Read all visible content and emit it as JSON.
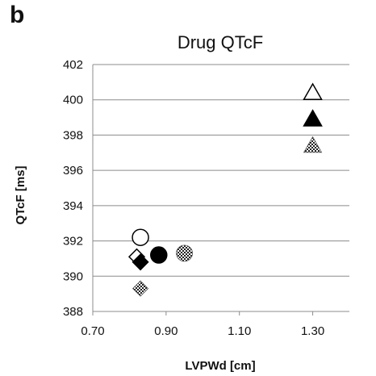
{
  "panel_letter": "b",
  "chart_data": {
    "type": "scatter",
    "title": "Drug QTcF",
    "xlabel": "LVPWd [cm]",
    "ylabel": "QTcF [ms]",
    "xlim": [
      0.7,
      1.4
    ],
    "ylim": [
      388,
      402
    ],
    "xticks": [
      "0.70",
      "0.90",
      "1.10",
      "1.30"
    ],
    "yticks": [
      "388",
      "390",
      "392",
      "394",
      "396",
      "398",
      "400",
      "402"
    ],
    "grid": "horizontal",
    "legend": "none",
    "points": [
      {
        "x": 0.83,
        "y": 392.2,
        "marker": "circle",
        "fill": "open"
      },
      {
        "x": 0.88,
        "y": 391.2,
        "marker": "circle",
        "fill": "solid"
      },
      {
        "x": 0.95,
        "y": 391.3,
        "marker": "circle",
        "fill": "hatched"
      },
      {
        "x": 0.82,
        "y": 391.1,
        "marker": "diamond",
        "fill": "open"
      },
      {
        "x": 0.83,
        "y": 390.8,
        "marker": "diamond",
        "fill": "solid"
      },
      {
        "x": 0.83,
        "y": 389.3,
        "marker": "diamond",
        "fill": "hatched"
      },
      {
        "x": 1.3,
        "y": 400.4,
        "marker": "triangle",
        "fill": "open"
      },
      {
        "x": 1.3,
        "y": 398.9,
        "marker": "triangle",
        "fill": "solid"
      },
      {
        "x": 1.3,
        "y": 397.4,
        "marker": "triangle",
        "fill": "hatched"
      }
    ]
  }
}
